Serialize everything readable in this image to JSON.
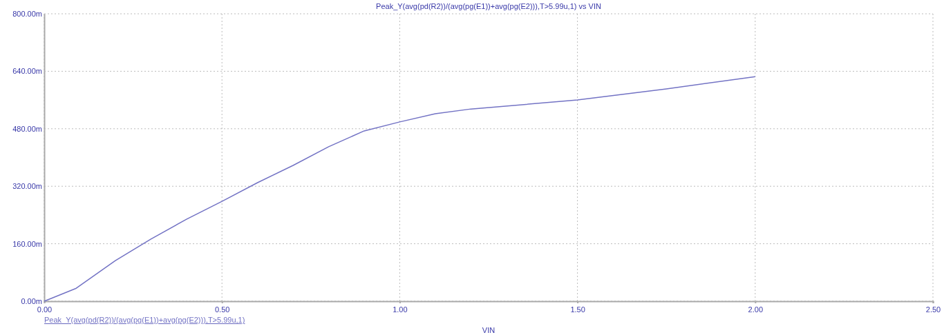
{
  "chart_data": {
    "type": "line",
    "title": "Peak_Y(avg(pd(R2))/(avg(pg(E1))+avg(pg(E2))),T>5.99u,1) vs VIN",
    "xlabel": "VIN",
    "x": [
      0,
      0.09,
      0.2,
      0.3,
      0.4,
      0.5,
      0.6,
      0.7,
      0.8,
      0.9,
      1.0,
      1.1,
      1.2,
      1.5,
      1.75,
      2.0
    ],
    "series": [
      {
        "name": "Peak_Y(avg(pd(R2))/(avg(pg(E1))+avg(pg(E2))),T>5.99u,1)",
        "color": "#7272c4",
        "values": [
          0,
          36,
          113,
          173,
          228,
          278,
          330,
          378,
          430,
          474,
          499,
          522,
          535,
          560,
          591,
          625
        ]
      }
    ],
    "xlim": [
      0,
      2.5
    ],
    "ylim": [
      0,
      800
    ],
    "xticks": [
      {
        "value": 0,
        "label": "0.00"
      },
      {
        "value": 0.5,
        "label": "0.50"
      },
      {
        "value": 1,
        "label": "1.00"
      },
      {
        "value": 1.5,
        "label": "1.50"
      },
      {
        "value": 2,
        "label": "2.00"
      },
      {
        "value": 2.5,
        "label": "2.50"
      }
    ],
    "yticks": [
      {
        "value": 0,
        "label": "0.00m"
      },
      {
        "value": 160,
        "label": "160.00m"
      },
      {
        "value": 320,
        "label": "320.00m"
      },
      {
        "value": 480,
        "label": "480.00m"
      },
      {
        "value": 640,
        "label": "640.00m"
      },
      {
        "value": 800,
        "label": "800.00m"
      }
    ],
    "grid": true,
    "legend": "bottom left",
    "marker": "none",
    "line_style": "solid"
  }
}
